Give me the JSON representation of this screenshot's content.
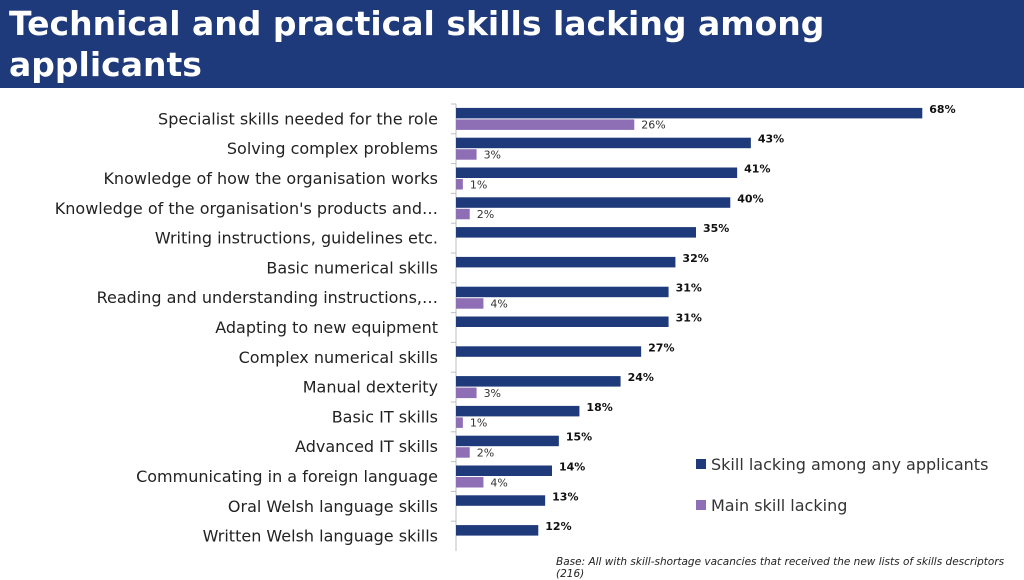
{
  "header": {
    "title": "Technical and practical skills lacking among applicants"
  },
  "chart_data": {
    "type": "bar",
    "orientation": "horizontal",
    "categories": [
      "Specialist skills needed for the role",
      "Solving complex problems",
      "Knowledge of how the organisation works",
      "Knowledge of the organisation's products and…",
      "Writing instructions, guidelines etc.",
      "Basic numerical skills",
      "Reading and understanding instructions,…",
      "Adapting to new equipment",
      "Complex numerical skills",
      "Manual dexterity",
      "Basic IT skills",
      "Advanced IT skills",
      "Communicating in a foreign language",
      "Oral Welsh language skills",
      "Written Welsh language skills"
    ],
    "series": [
      {
        "name": "Skill lacking among any applicants",
        "values": [
          68,
          43,
          41,
          40,
          35,
          32,
          31,
          31,
          27,
          24,
          18,
          15,
          14,
          13,
          12
        ],
        "labels": [
          "68%",
          "43%",
          "41%",
          "40%",
          "35%",
          "32%",
          "31%",
          "31%",
          "27%",
          "24%",
          "18%",
          "15%",
          "14%",
          "13%",
          "12%"
        ]
      },
      {
        "name": "Main skill lacking",
        "values": [
          26,
          3,
          1,
          2,
          null,
          null,
          4,
          null,
          null,
          3,
          1,
          2,
          4,
          null,
          null
        ],
        "labels": [
          "26%",
          "3%",
          "1%",
          "2%",
          "",
          "",
          "4%",
          "",
          "",
          "3%",
          "1%",
          "2%",
          "4%",
          "",
          ""
        ]
      }
    ],
    "xlim": [
      0,
      70
    ],
    "grid": false,
    "legend_position": "bottom-right",
    "colors": {
      "any": "#1f3a7a",
      "main": "#8e6fb5"
    }
  },
  "footer": {
    "base_note": "Base: All with skill-shortage vacancies that received the new lists of skills descriptors (216)"
  }
}
